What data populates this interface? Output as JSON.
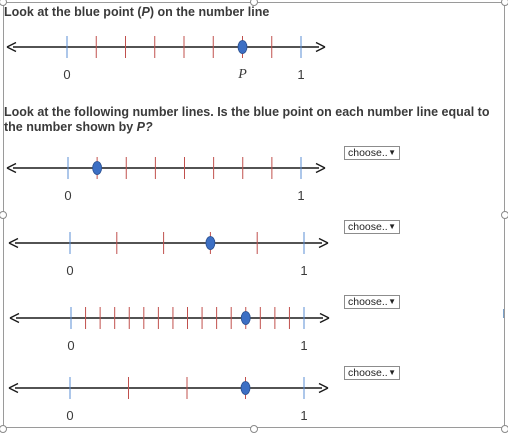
{
  "prompt1": {
    "before": "Look at the blue point (",
    "var": "P",
    "after": ") on the number line"
  },
  "prompt2": {
    "line1": "Look at the following number lines.  Is the blue point on each number line equal to",
    "line2_before": "the number shown by ",
    "line2_var": "P?"
  },
  "labels": {
    "zero": "0",
    "one": "1",
    "p": "P"
  },
  "dropdowns": [
    {
      "value": "choose.."
    },
    {
      "value": "choose.."
    },
    {
      "value": "choose.."
    },
    {
      "value": "choose.."
    }
  ],
  "number_lines": [
    {
      "divisions": 8,
      "point": 0.75,
      "show_p_label": true
    },
    {
      "divisions": 8,
      "point": 0.125
    },
    {
      "divisions": 5,
      "point": 0.6
    },
    {
      "divisions": 16,
      "point": 0.75
    },
    {
      "divisions": 4,
      "point": 0.75
    }
  ],
  "colors": {
    "text": "#3a3a3a",
    "axis": "#1a1a1a",
    "endpoint_tick": "#5b8fd6",
    "tick": "#c0504d",
    "point_fill": "#3c6fc4",
    "point_stroke": "#2a4f8f"
  }
}
